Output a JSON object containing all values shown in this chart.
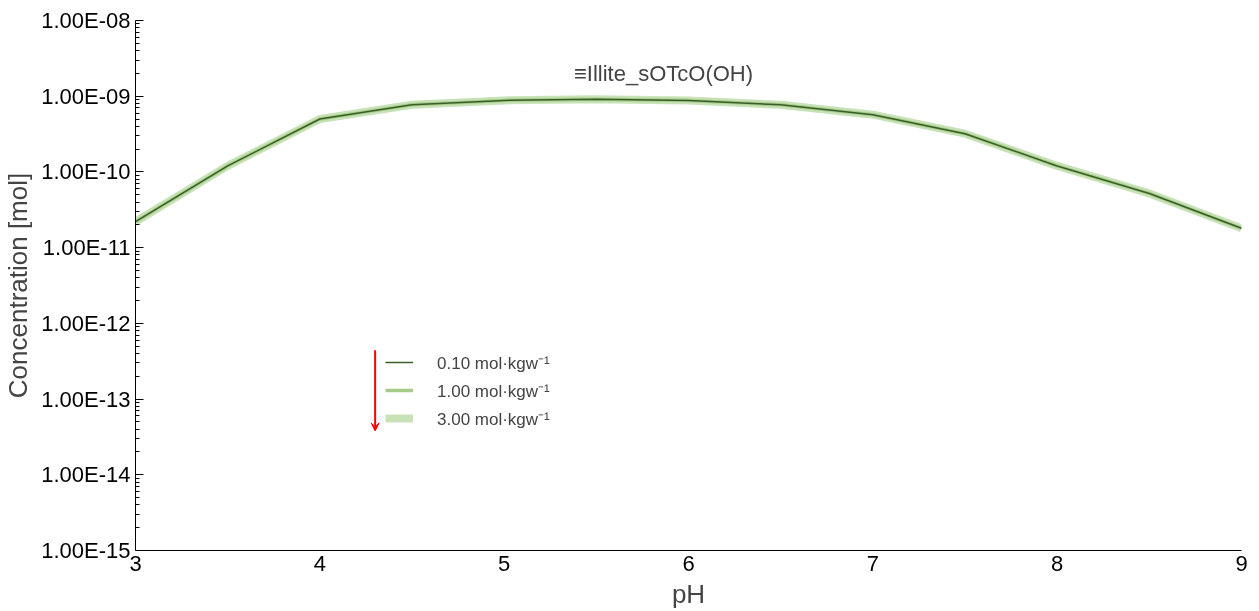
{
  "chart_data": {
    "type": "line",
    "xlabel": "pH",
    "ylabel": "Concentration [mol]",
    "log": "y",
    "x": [
      3,
      3.5,
      4,
      4.5,
      5,
      5.5,
      6,
      6.5,
      7,
      7.5,
      8,
      8.5,
      9
    ],
    "series": [
      {
        "name": "0.10 mol·kgw⁻¹",
        "color": "#3a5e28",
        "values": [
          2.2e-11,
          1.2e-10,
          5e-10,
          7.7e-10,
          8.8e-10,
          9.1e-10,
          8.8e-10,
          7.7e-10,
          5.7e-10,
          3.2e-10,
          1.2e-10,
          5.2e-11,
          1.8e-11
        ]
      },
      {
        "name": "1.00 mol·kgw⁻¹",
        "color": "#a6cc8a",
        "values": [
          2.2e-11,
          1.2e-10,
          5e-10,
          7.7e-10,
          8.8e-10,
          9.1e-10,
          8.8e-10,
          7.7e-10,
          5.7e-10,
          3.2e-10,
          1.2e-10,
          5.2e-11,
          1.8e-11
        ]
      },
      {
        "name": "3.00 mol·kgw⁻¹",
        "color": "#c8e2b8",
        "values": [
          2.2e-11,
          1.2e-10,
          5e-10,
          7.7e-10,
          8.8e-10,
          9.1e-10,
          8.8e-10,
          7.7e-10,
          5.7e-10,
          3.2e-10,
          1.2e-10,
          5.2e-11,
          1.8e-11
        ]
      }
    ],
    "xlim": [
      3,
      9
    ],
    "xticks": [
      3,
      4,
      5,
      6,
      7,
      8,
      9
    ],
    "ylim": [
      1e-15,
      1e-08
    ],
    "yticks": [
      {
        "value": 1e-15,
        "label": "1.00E-15"
      },
      {
        "value": 1e-14,
        "label": "1.00E-14"
      },
      {
        "value": 1e-13,
        "label": "1.00E-13"
      },
      {
        "value": 1e-12,
        "label": "1.00E-12"
      },
      {
        "value": 1e-11,
        "label": "1.00E-11"
      },
      {
        "value": 1e-10,
        "label": "1.00E-10"
      },
      {
        "value": 1e-09,
        "label": "1.00E-09"
      },
      {
        "value": 1e-08,
        "label": "1.00E-08"
      }
    ],
    "annotations": [
      "≡Illite_sOTcO(OH)"
    ],
    "legend": "bottom left",
    "grid": false,
    "line_style": "solid"
  }
}
